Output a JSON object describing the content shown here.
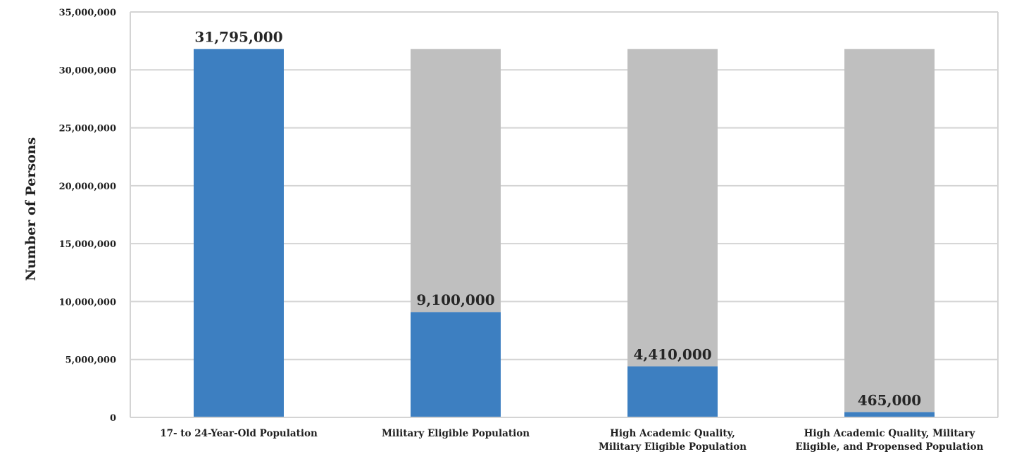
{
  "chart_data": {
    "type": "bar",
    "stacked": true,
    "ylabel": "Number of Persons",
    "xlabel": "",
    "ylim": [
      0,
      35000000
    ],
    "yticks": [
      0,
      5000000,
      10000000,
      15000000,
      20000000,
      25000000,
      30000000,
      35000000
    ],
    "ytick_labels": [
      "0",
      "5,000,000",
      "10,000,000",
      "15,000,000",
      "20,000,000",
      "25,000,000",
      "30,000,000",
      "35,000,000"
    ],
    "grid": true,
    "categories": [
      [
        "17- to 24-Year-Old Population"
      ],
      [
        "Military Eligible Population"
      ],
      [
        "High Academic Quality,",
        "Military Eligible Population"
      ],
      [
        "High Academic Quality, Military",
        "Eligible, and Propensed Population"
      ]
    ],
    "series": [
      {
        "values": [
          31795000,
          9100000,
          4410000,
          465000
        ],
        "color": "#3d7fc1"
      },
      {
        "values": [
          0,
          22695000,
          27385000,
          31330000
        ],
        "color": "#bfbfbf"
      }
    ],
    "data_labels": [
      "31,795,000",
      "9,100,000",
      "4,410,000",
      "465,000"
    ]
  }
}
